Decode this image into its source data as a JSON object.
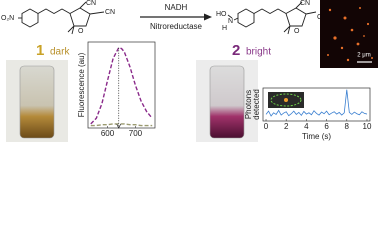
{
  "scheme": {
    "reactant": {
      "groups": [
        "O₂N",
        "CN",
        "CN",
        "O"
      ],
      "number": "1",
      "state": "dark"
    },
    "reagents": [
      "NADH",
      "Nitroreductase"
    ],
    "product": {
      "groups": [
        "HO",
        "N",
        "H",
        "CN",
        "CN",
        "O"
      ],
      "number": "2",
      "state": "bright"
    },
    "scale_bar": "2 μm"
  },
  "chart_data": [
    {
      "type": "line",
      "y_label": "Fluorescence (au)",
      "x": [
        540,
        560,
        580,
        600,
        620,
        640,
        650,
        660,
        680,
        700,
        720,
        740,
        760
      ],
      "series": [
        {
          "color": "#8a2a8a",
          "dash": true,
          "values": [
            5,
            12,
            30,
            58,
            85,
            98,
            97,
            93,
            75,
            52,
            33,
            20,
            12
          ]
        },
        {
          "color": "#9a9a70",
          "dash": true,
          "values": [
            3,
            3,
            4,
            4,
            5,
            5,
            5,
            5,
            4,
            4,
            3,
            3,
            3
          ]
        }
      ],
      "xlim": [
        530,
        770
      ],
      "ylim": [
        0,
        105
      ],
      "xticks": [
        600,
        700
      ]
    },
    {
      "type": "line",
      "y_label": [
        "Photons",
        "detected"
      ],
      "x_label": "Time (s)",
      "x": [
        0,
        0.25,
        0.5,
        0.75,
        1,
        1.25,
        1.5,
        1.75,
        2,
        2.25,
        2.5,
        2.75,
        3,
        3.25,
        3.5,
        3.75,
        4,
        4.25,
        4.5,
        4.75,
        5,
        5.25,
        5.5,
        5.75,
        6,
        6.25,
        6.5,
        6.75,
        7,
        7.25,
        7.5,
        7.75,
        8,
        8.25,
        8.5,
        8.75,
        9,
        9.25,
        9.5,
        9.75,
        10
      ],
      "series": [
        {
          "color": "#3a7fd0",
          "dash": false,
          "values": [
            2,
            3,
            1.5,
            2.5,
            2,
            3.2,
            1.8,
            2.4,
            2.8,
            1.6,
            2.2,
            3,
            2,
            2.6,
            1.7,
            2.9,
            2.1,
            2.5,
            1.9,
            3.1,
            2.3,
            1.8,
            2.7,
            2.2,
            3,
            1.9,
            2.4,
            2.8,
            2.1,
            2.6,
            1.8,
            2.5,
            9.5,
            2.6,
            2,
            2.7,
            2.2,
            1.9,
            2.8,
            2.3,
            2.1
          ]
        }
      ],
      "xlim": [
        -0.3,
        10.3
      ],
      "ylim": [
        0,
        10
      ],
      "xticks": [
        0,
        2,
        4,
        6,
        8,
        10
      ]
    }
  ]
}
